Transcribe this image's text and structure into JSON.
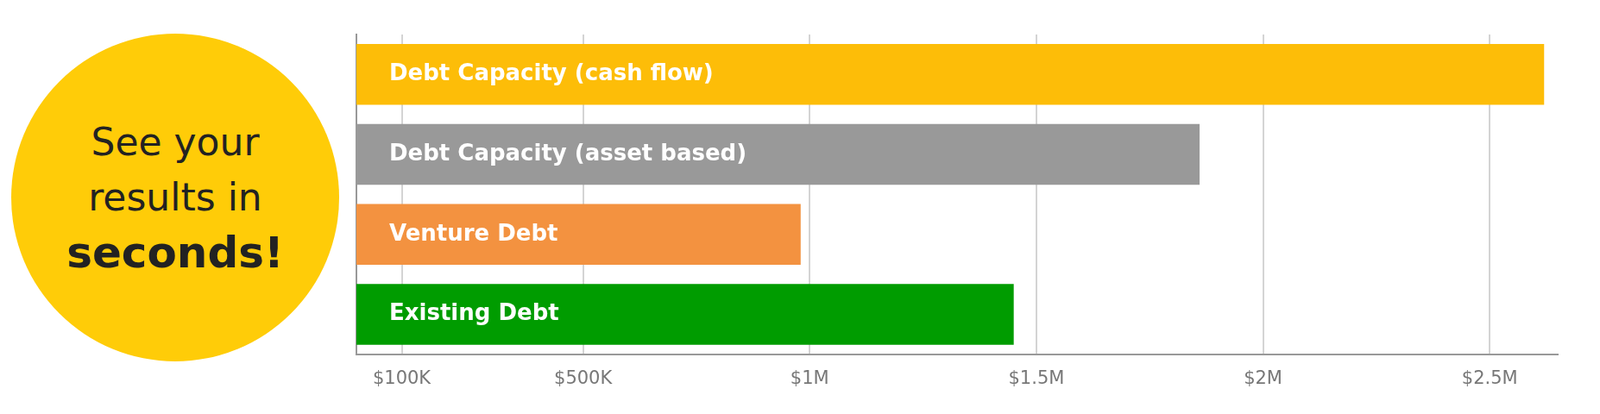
{
  "chart_data": {
    "type": "bar",
    "orientation": "horizontal",
    "categories": [
      "Debt Capacity (cash flow)",
      "Debt Capacity (asset based)",
      "Venture Debt",
      "Existing Debt"
    ],
    "values": [
      2620000,
      1860000,
      980000,
      1450000
    ],
    "colors": [
      "#fdbd08",
      "#999999",
      "#f39240",
      "#009c00"
    ],
    "xlim": [
      0,
      2650000
    ],
    "xticks": [
      {
        "value": 100000,
        "label": "$100K"
      },
      {
        "value": 500000,
        "label": "$500K"
      },
      {
        "value": 1000000,
        "label": "$1M"
      },
      {
        "value": 1500000,
        "label": "$1.5M"
      },
      {
        "value": 2000000,
        "label": "$2M"
      },
      {
        "value": 2500000,
        "label": "$2.5M"
      }
    ],
    "grid": true,
    "tick_labels": "x"
  },
  "callout": {
    "lines": [
      {
        "text": "See your"
      },
      {
        "text": "results in"
      },
      {
        "text": "seconds!",
        "bold": true
      }
    ]
  }
}
